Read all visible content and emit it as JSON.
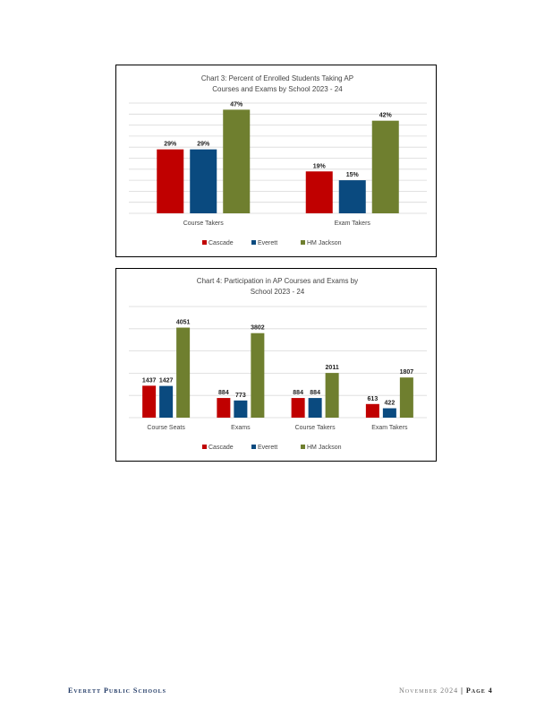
{
  "colors": {
    "cascade": "#c00000",
    "everett": "#0a4a7f",
    "jackson": "#6f7f2f",
    "grid": "#d9d9d9"
  },
  "chart_data": [
    {
      "type": "bar",
      "title_line1": "Chart 3: Percent of Enrolled Students Taking AP",
      "title_line2": "Courses and Exams by School 2023 - 24",
      "categories": [
        "Course Takers",
        "Exam Takers"
      ],
      "series": [
        {
          "name": "Cascade",
          "values": [
            29,
            19
          ],
          "labels": [
            "29%",
            "19%"
          ]
        },
        {
          "name": "Everett",
          "values": [
            29,
            15
          ],
          "labels": [
            "29%",
            "15%"
          ]
        },
        {
          "name": "HM Jackson",
          "values": [
            47,
            42
          ],
          "labels": [
            "47%",
            "42%"
          ]
        }
      ],
      "ylim": [
        0,
        50
      ],
      "grid": true,
      "legend": "bottom"
    },
    {
      "type": "bar",
      "title_line1": "Chart 4: Participation in AP Courses and Exams by",
      "title_line2": "School 2023 - 24",
      "categories": [
        "Course Seats",
        "Exams",
        "Course Takers",
        "Exam Takers"
      ],
      "series": [
        {
          "name": "Cascade",
          "values": [
            1437,
            884,
            884,
            613
          ],
          "labels": [
            "1437",
            "884",
            "884",
            "613"
          ]
        },
        {
          "name": "Everett",
          "values": [
            1427,
            773,
            884,
            422
          ],
          "labels": [
            "1427",
            "773",
            "884",
            "422"
          ]
        },
        {
          "name": "HM Jackson",
          "values": [
            4051,
            3802,
            2011,
            1807
          ],
          "labels": [
            "4051",
            "3802",
            "2011",
            "1807"
          ]
        }
      ],
      "ylim": [
        0,
        5000
      ],
      "grid": true,
      "legend": "bottom"
    }
  ],
  "footer": {
    "left": "Everett Public Schools",
    "right_date": "November 2024",
    "right_page": "| Page 4"
  }
}
